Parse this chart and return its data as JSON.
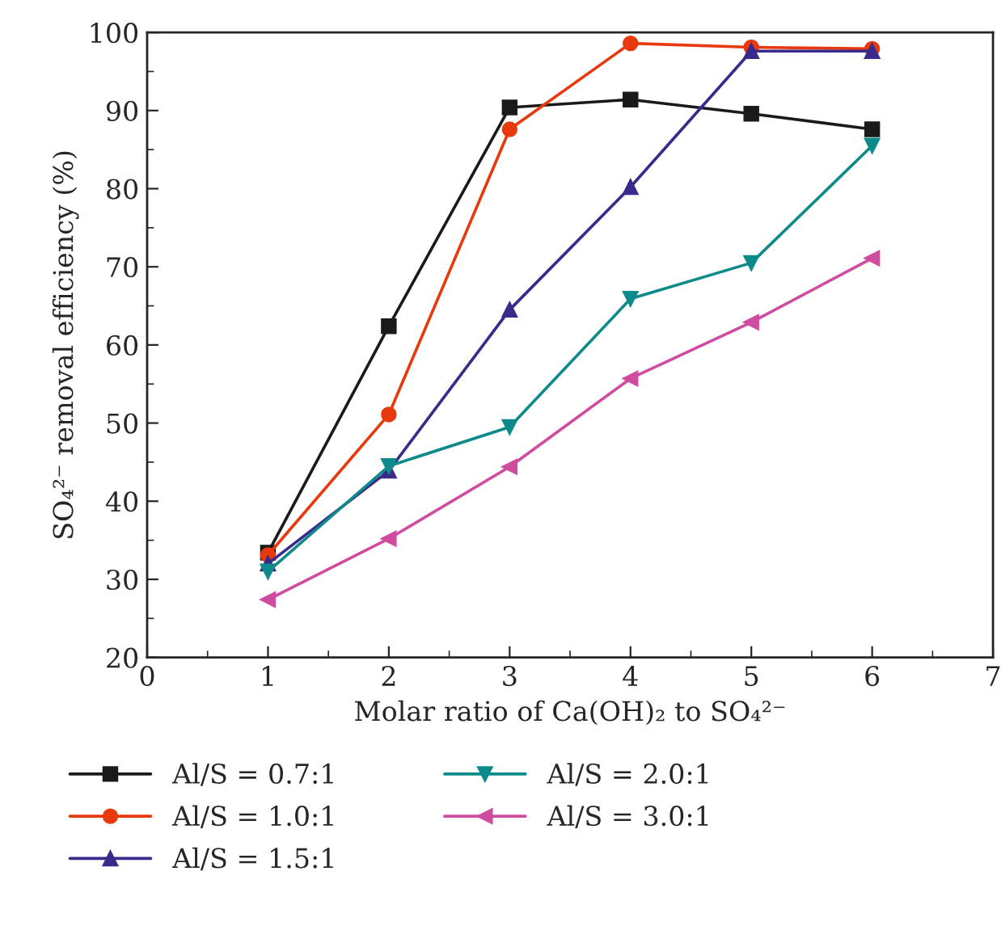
{
  "chart_data": {
    "type": "line",
    "xlabel": "Molar ratio of Ca(OH)₂ to SO₄²⁻",
    "ylabel": "SO₄²⁻ removal efficiency (%)",
    "x": [
      1,
      2,
      3,
      4,
      5,
      6
    ],
    "series": [
      {
        "name": "Al/S = 0.7:1",
        "color": "#1a1a1a",
        "marker": "square",
        "values": [
          33.4,
          62.4,
          90.4,
          91.4,
          89.6,
          87.6
        ]
      },
      {
        "name": "Al/S = 1.0:1",
        "color": "#e8380d",
        "marker": "circle",
        "values": [
          33.1,
          51.1,
          87.6,
          98.6,
          98.1,
          97.9
        ]
      },
      {
        "name": "Al/S = 1.5:1",
        "color": "#3a2a8c",
        "marker": "triangle",
        "values": [
          32.0,
          43.9,
          64.5,
          80.2,
          97.6,
          97.6
        ]
      },
      {
        "name": "Al/S = 2.0:1",
        "color": "#0e8a8a",
        "marker": "triangle_down",
        "values": [
          31.0,
          44.5,
          49.5,
          65.9,
          70.5,
          85.5
        ]
      },
      {
        "name": "Al/S = 3.0:1",
        "color": "#d04ca0",
        "marker": "triangle_left",
        "values": [
          27.4,
          35.2,
          44.4,
          55.7,
          62.9,
          71.1
        ]
      }
    ],
    "xlim": [
      0,
      7
    ],
    "xticks": [
      0,
      1,
      2,
      3,
      4,
      5,
      6,
      7
    ],
    "ylim": [
      20,
      100
    ],
    "yticks": [
      20,
      30,
      40,
      50,
      60,
      70,
      80,
      90,
      100
    ],
    "grid": false,
    "legend": "bottom"
  }
}
